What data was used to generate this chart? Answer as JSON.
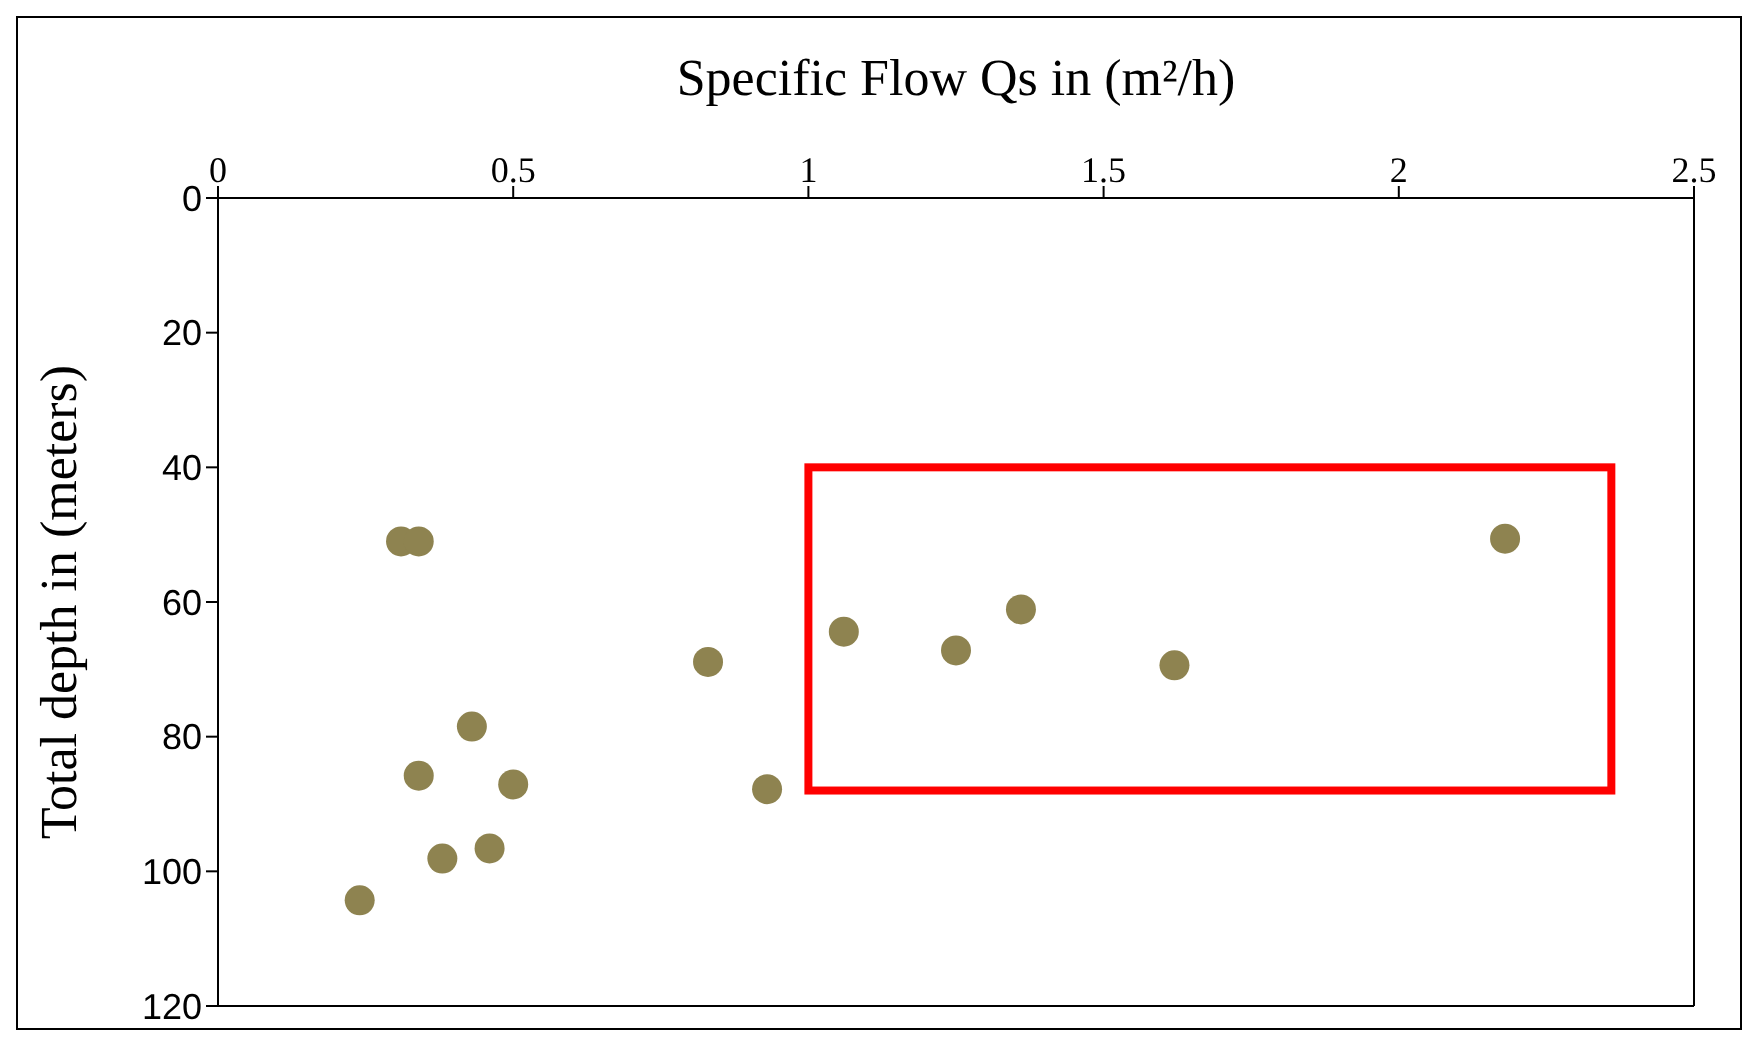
{
  "chart_data": {
    "type": "scatter",
    "xlabel": "Specific Flow Qs in (m²/h)",
    "ylabel": "Total depth in (meters)",
    "x": [
      0.31,
      0.34,
      0.43,
      0.34,
      0.5,
      0.46,
      0.38,
      0.24,
      0.83,
      0.93,
      1.06,
      1.25,
      1.36,
      1.62,
      2.18
    ],
    "series": [
      {
        "color": "#8e8350",
        "values": [
          51,
          51,
          78.5,
          85.8,
          87.1,
          96.6,
          98.1,
          104.3,
          68.9,
          87.8,
          64.4,
          67.2,
          61.1,
          69.4,
          50.6
        ]
      }
    ],
    "xlim": [
      0,
      2.5
    ],
    "xticks": [
      0,
      0.5,
      1,
      1.5,
      2,
      2.5
    ],
    "ylim": [
      120,
      0
    ],
    "yticks": [
      0,
      20,
      40,
      60,
      80,
      100,
      120
    ],
    "marker": "circle"
  }
}
